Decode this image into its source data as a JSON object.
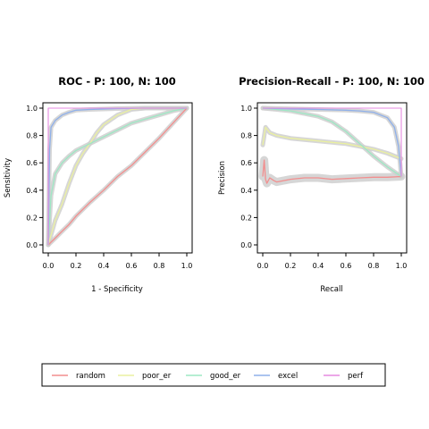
{
  "colors": {
    "random": "#f28e8e",
    "poor_er": "#eaf0a0",
    "good_er": "#9de8c4",
    "excel": "#8fb0ea",
    "perf": "#e58ae0",
    "band": "#cfcfcf"
  },
  "legend": [
    "random",
    "poor_er",
    "good_er",
    "excel",
    "perf"
  ],
  "chart_data": [
    {
      "type": "line",
      "title": "ROC - P: 100, N: 100",
      "xlabel": "1 - Specificity",
      "ylabel": "Sensitivity",
      "xlim": [
        0,
        1
      ],
      "ylim": [
        0,
        1
      ],
      "xticks": [
        "0.0",
        "0.2",
        "0.4",
        "0.6",
        "0.8",
        "1.0"
      ],
      "yticks": [
        "0.0",
        "0.2",
        "0.4",
        "0.6",
        "0.8",
        "1.0"
      ],
      "series": [
        {
          "name": "random",
          "x": [
            0,
            0.05,
            0.1,
            0.15,
            0.2,
            0.3,
            0.4,
            0.5,
            0.6,
            0.7,
            0.8,
            0.9,
            1.0
          ],
          "y": [
            0,
            0.05,
            0.1,
            0.15,
            0.21,
            0.31,
            0.4,
            0.5,
            0.58,
            0.68,
            0.78,
            0.89,
            1.0
          ]
        },
        {
          "name": "poor_er",
          "x": [
            0,
            0.05,
            0.1,
            0.15,
            0.2,
            0.25,
            0.3,
            0.35,
            0.4,
            0.5,
            0.6,
            0.7,
            0.8,
            1.0
          ],
          "y": [
            0,
            0.18,
            0.3,
            0.45,
            0.58,
            0.67,
            0.74,
            0.82,
            0.88,
            0.95,
            0.99,
            1.0,
            1.0,
            1.0
          ]
        },
        {
          "name": "good_er",
          "x": [
            0,
            0.02,
            0.05,
            0.1,
            0.15,
            0.2,
            0.3,
            0.4,
            0.5,
            0.6,
            0.7,
            0.8,
            0.9,
            1.0
          ],
          "y": [
            0,
            0.36,
            0.52,
            0.6,
            0.65,
            0.69,
            0.74,
            0.79,
            0.84,
            0.89,
            0.92,
            0.95,
            0.98,
            1.0
          ]
        },
        {
          "name": "excel",
          "x": [
            0,
            0.01,
            0.02,
            0.05,
            0.1,
            0.15,
            0.2,
            0.3,
            0.5,
            0.7,
            1.0
          ],
          "y": [
            0,
            0.7,
            0.86,
            0.91,
            0.95,
            0.97,
            0.985,
            0.99,
            0.997,
            1.0,
            1.0
          ]
        },
        {
          "name": "perf",
          "x": [
            0,
            0,
            1
          ],
          "y": [
            0,
            1,
            1
          ]
        }
      ]
    },
    {
      "type": "line",
      "title": "Precision-Recall - P: 100, N: 100",
      "xlabel": "Recall",
      "ylabel": "Precision",
      "xlim": [
        0,
        1
      ],
      "ylim": [
        0,
        1
      ],
      "xticks": [
        "0.0",
        "0.2",
        "0.4",
        "0.6",
        "0.8",
        "1.0"
      ],
      "yticks": [
        "0.0",
        "0.2",
        "0.4",
        "0.6",
        "0.8",
        "1.0"
      ],
      "series": [
        {
          "name": "random",
          "x": [
            0,
            0.01,
            0.02,
            0.03,
            0.05,
            0.08,
            0.1,
            0.15,
            0.2,
            0.3,
            0.4,
            0.5,
            0.6,
            0.7,
            0.8,
            0.9,
            1.0
          ],
          "y": [
            0.5,
            0.62,
            0.48,
            0.45,
            0.49,
            0.47,
            0.46,
            0.47,
            0.48,
            0.49,
            0.49,
            0.48,
            0.485,
            0.49,
            0.495,
            0.495,
            0.5
          ]
        },
        {
          "name": "poor_er",
          "x": [
            0,
            0.02,
            0.05,
            0.1,
            0.2,
            0.3,
            0.4,
            0.5,
            0.6,
            0.7,
            0.8,
            0.9,
            1.0
          ],
          "y": [
            0.73,
            0.86,
            0.82,
            0.8,
            0.78,
            0.77,
            0.76,
            0.75,
            0.74,
            0.72,
            0.7,
            0.67,
            0.63
          ]
        },
        {
          "name": "good_er",
          "x": [
            0,
            0.1,
            0.2,
            0.3,
            0.4,
            0.5,
            0.6,
            0.7,
            0.8,
            0.9,
            1.0
          ],
          "y": [
            1.0,
            0.99,
            0.98,
            0.96,
            0.94,
            0.9,
            0.83,
            0.74,
            0.65,
            0.57,
            0.5
          ]
        },
        {
          "name": "excel",
          "x": [
            0,
            0.2,
            0.4,
            0.6,
            0.7,
            0.8,
            0.85,
            0.9,
            0.95,
            0.98,
            1.0
          ],
          "y": [
            1.0,
            0.995,
            0.99,
            0.985,
            0.98,
            0.97,
            0.95,
            0.93,
            0.86,
            0.72,
            0.5
          ]
        },
        {
          "name": "perf",
          "x": [
            0,
            1,
            1
          ],
          "y": [
            1,
            1,
            0.5
          ]
        }
      ]
    }
  ]
}
